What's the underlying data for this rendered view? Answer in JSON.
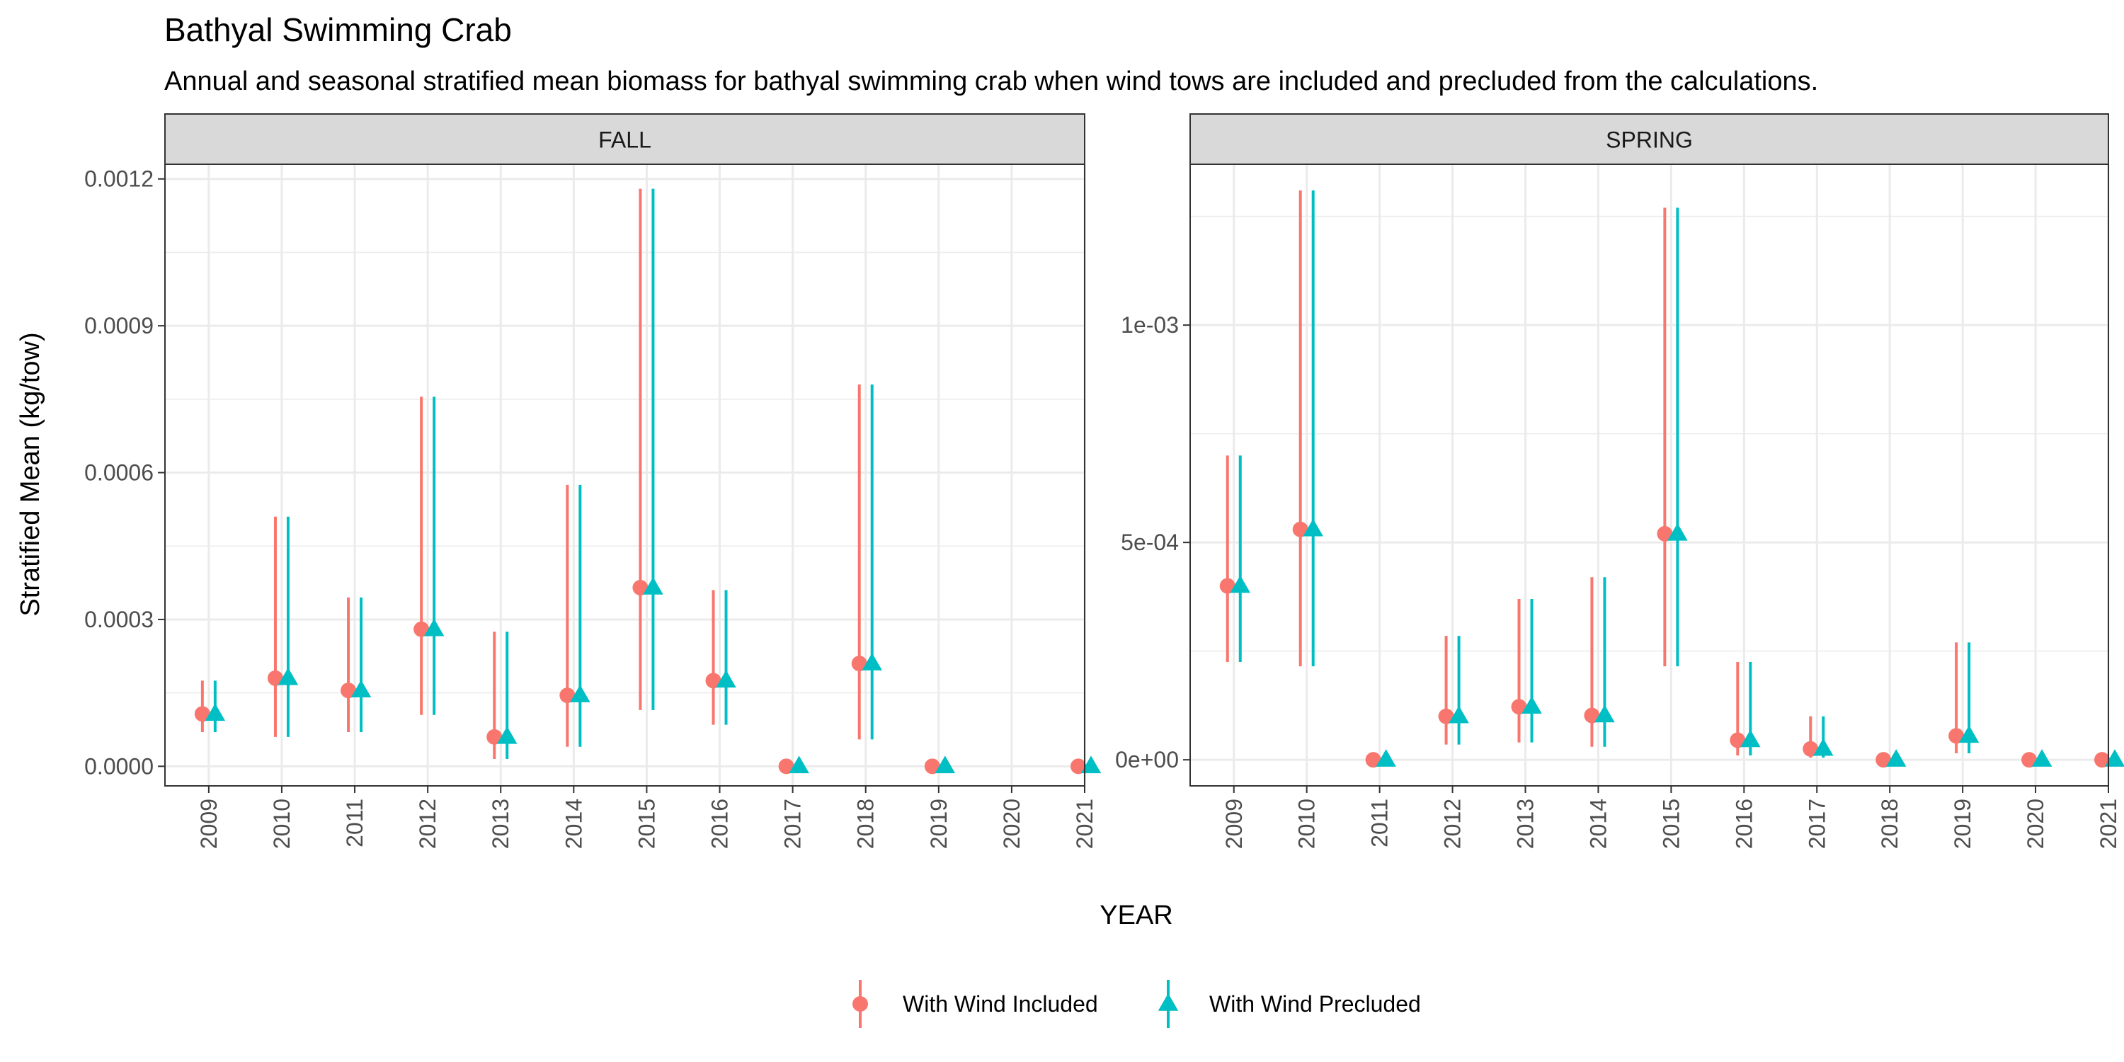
{
  "chart_data": {
    "type": "scatter",
    "title": "Bathyal Swimming Crab",
    "subtitle": "Annual and seasonal stratified mean biomass for bathyal swimming crab when wind tows are included and precluded from the calculations.",
    "xlabel": "YEAR",
    "ylabel": "Stratified Mean (kg/tow)",
    "legend": {
      "placement": "bottom"
    },
    "grid": true,
    "series_styles": [
      {
        "name": "With Wind Included",
        "color": "#F8766D",
        "marker": "circle"
      },
      {
        "name": "With Wind Precluded",
        "color": "#00BFC4",
        "marker": "triangle"
      }
    ],
    "panels": [
      {
        "facet": "FALL",
        "x": [
          "2009",
          "2010",
          "2011",
          "2012",
          "2013",
          "2014",
          "2015",
          "2016",
          "2017",
          "2018",
          "2019",
          "2020",
          "2021"
        ],
        "ylim": [
          -4e-05,
          0.00123
        ],
        "yticks": [
          0,
          0.0003,
          0.0006,
          0.0009,
          0.0012
        ],
        "yticklabels": [
          "0.0000",
          "0.0003",
          "0.0006",
          "0.0009",
          "0.0012"
        ],
        "series": [
          {
            "name": "With Wind Included",
            "mean": [
              0.000107,
              0.00018,
              0.000155,
              0.00028,
              6e-05,
              0.000145,
              0.000365,
              0.000175,
              0.0,
              0.00021,
              0.0,
              null,
              0.0
            ],
            "lower": [
              7e-05,
              6e-05,
              7e-05,
              0.000105,
              1.5e-05,
              4e-05,
              0.000115,
              8.5e-05,
              0.0,
              5.5e-05,
              0.0,
              null,
              0.0
            ],
            "upper": [
              0.000175,
              0.00051,
              0.000345,
              0.000755,
              0.000275,
              0.000575,
              0.00118,
              0.00036,
              0.0,
              0.00078,
              0.0,
              null,
              0.0
            ]
          },
          {
            "name": "With Wind Precluded",
            "mean": [
              0.000107,
              0.00018,
              0.000155,
              0.00028,
              6e-05,
              0.000145,
              0.000365,
              0.000175,
              0.0,
              0.00021,
              0.0,
              null,
              0.0
            ],
            "lower": [
              7e-05,
              6e-05,
              7e-05,
              0.000105,
              1.5e-05,
              4e-05,
              0.000115,
              8.5e-05,
              0.0,
              5.5e-05,
              0.0,
              null,
              0.0
            ],
            "upper": [
              0.000175,
              0.00051,
              0.000345,
              0.000755,
              0.000275,
              0.000575,
              0.00118,
              0.00036,
              0.0,
              0.00078,
              0.0,
              null,
              0.0
            ]
          }
        ]
      },
      {
        "facet": "SPRING",
        "x": [
          "2009",
          "2010",
          "2011",
          "2012",
          "2013",
          "2014",
          "2015",
          "2016",
          "2017",
          "2018",
          "2019",
          "2020",
          "2021"
        ],
        "ylim": [
          -6e-05,
          0.00137
        ],
        "yticks": [
          0,
          0.0005,
          0.001
        ],
        "yticklabels": [
          "0e+00",
          "5e-04",
          "1e-03"
        ],
        "series": [
          {
            "name": "With Wind Included",
            "mean": [
              0.0004,
              0.00053,
              0.0,
              0.0001,
              0.000122,
              0.000102,
              0.00052,
              4.5e-05,
              2.5e-05,
              0.0,
              5.5e-05,
              0.0,
              0.0
            ],
            "lower": [
              0.000225,
              0.000215,
              0.0,
              3.5e-05,
              4e-05,
              3e-05,
              0.000215,
              1e-05,
              5e-06,
              0.0,
              1.5e-05,
              0.0,
              0.0
            ],
            "upper": [
              0.0007,
              0.00131,
              0.0,
              0.000285,
              0.00037,
              0.00042,
              0.00127,
              0.000225,
              0.0001,
              0.0,
              0.00027,
              0.0,
              0.0
            ]
          },
          {
            "name": "With Wind Precluded",
            "mean": [
              0.0004,
              0.00053,
              0.0,
              0.0001,
              0.000122,
              0.000102,
              0.00052,
              4.5e-05,
              2.5e-05,
              0.0,
              5.5e-05,
              0.0,
              0.0
            ],
            "lower": [
              0.000225,
              0.000215,
              0.0,
              3.5e-05,
              4e-05,
              3e-05,
              0.000215,
              1e-05,
              5e-06,
              0.0,
              1.5e-05,
              0.0,
              0.0
            ],
            "upper": [
              0.0007,
              0.00131,
              0.0,
              0.000285,
              0.00037,
              0.00042,
              0.00127,
              0.000225,
              0.0001,
              0.0,
              0.00027,
              0.0,
              0.0
            ]
          }
        ]
      }
    ]
  }
}
